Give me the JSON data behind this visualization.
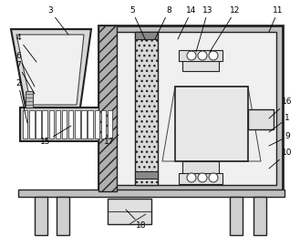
{
  "bg_color": "#ffffff",
  "lc": "#444444",
  "dc": "#222222",
  "wall_fc": "#c0c0c0",
  "inner_fc": "#f0f0f0",
  "gray_fc": "#aaaaaa",
  "hatch_fc": "#b8b8b8"
}
